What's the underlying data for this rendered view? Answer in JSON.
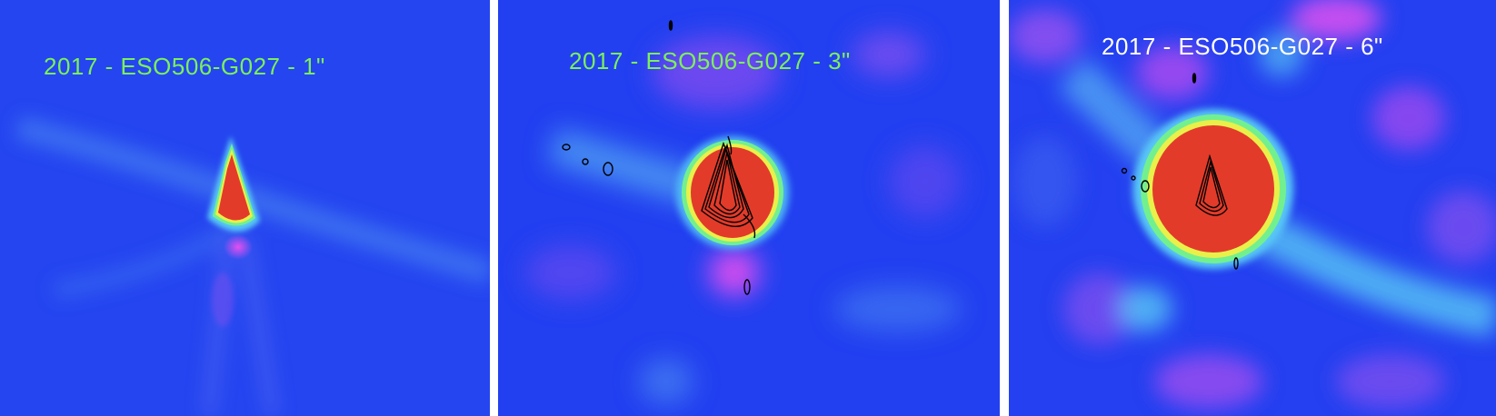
{
  "panels": [
    {
      "title": "2017 - ESO506-G027 - 1\"",
      "title_color": "#7cf05a"
    },
    {
      "title": "2017 - ESO506-G027 - 3\"",
      "title_color": "#7cf05a"
    },
    {
      "title": "2017 - ESO506-G027 - 6\"",
      "title_color": "#ffffff"
    }
  ],
  "colors": {
    "background": "#1f3ff0",
    "emission_core": "#e33b2a",
    "ring_yellow": "#e9f04a",
    "ring_green": "#72f08f",
    "halo_cyan": "#58c8f5",
    "magenta": "#c64df0",
    "contour": "#000000",
    "separator": "#ffffff"
  }
}
